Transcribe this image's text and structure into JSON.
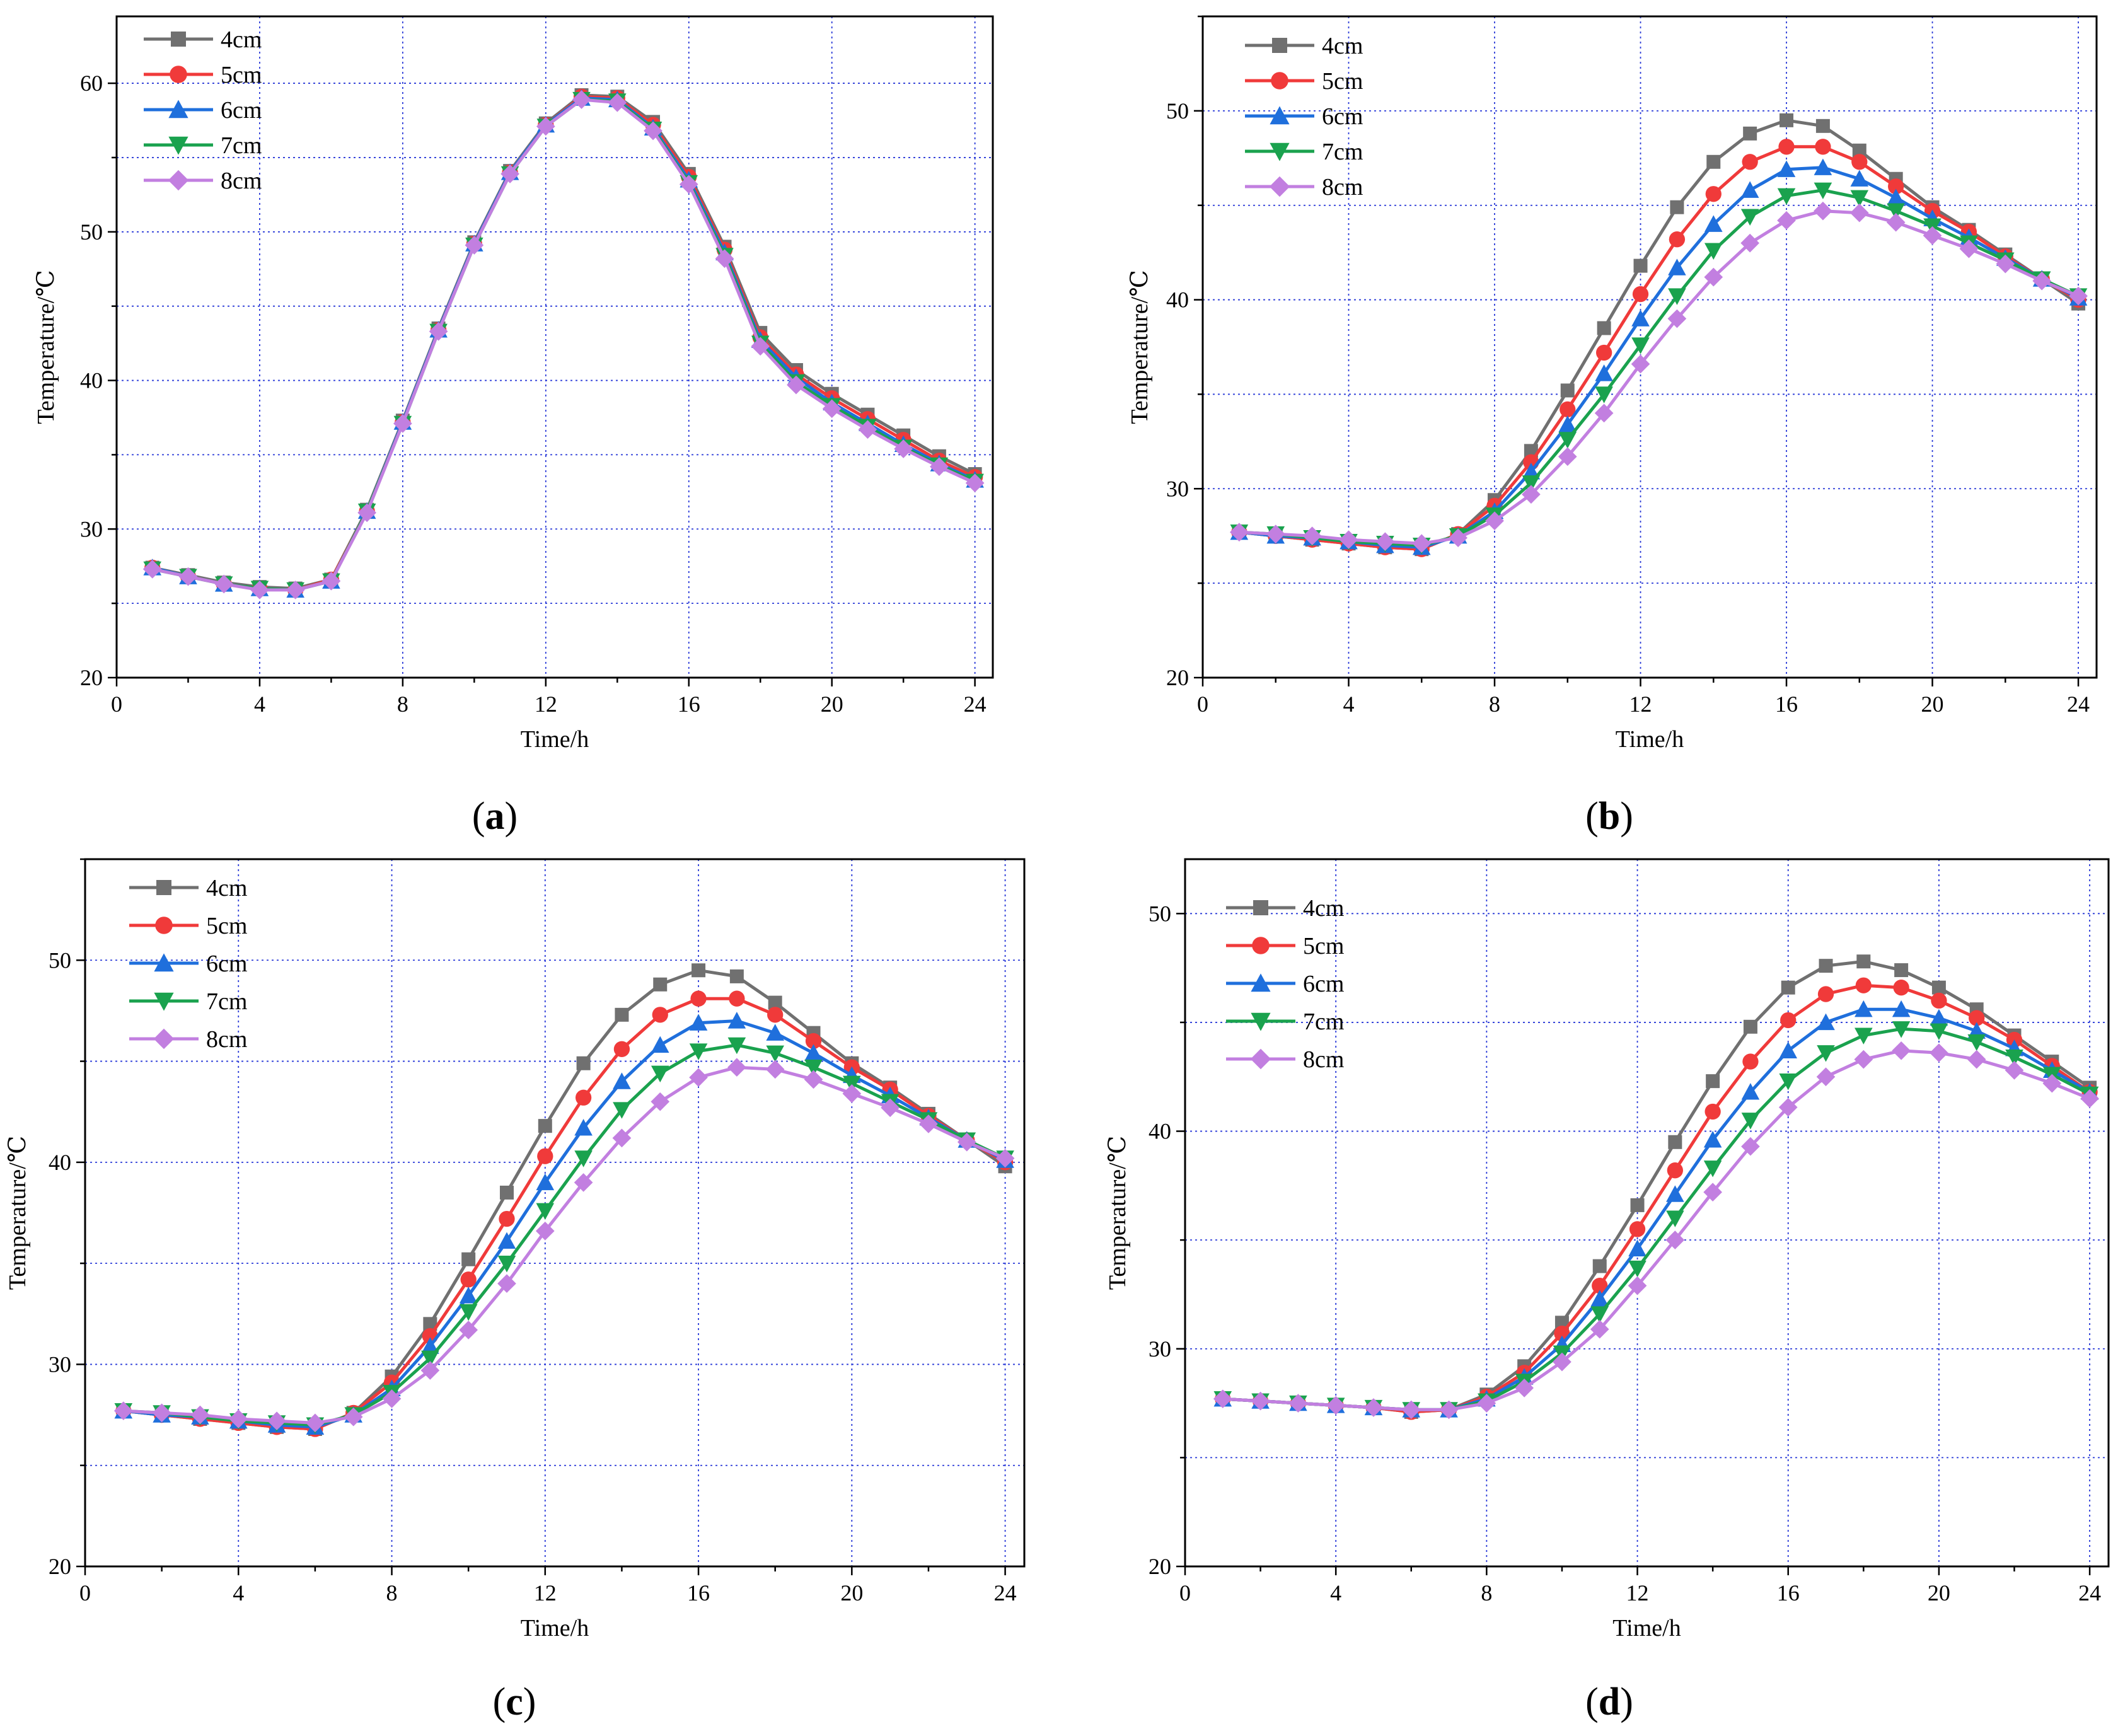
{
  "figure": {
    "type": "multi-panel line chart",
    "panels": 4
  },
  "colors": {
    "grid": "#2b3bd8",
    "axis": "#000000",
    "series": [
      "#707070",
      "#f03a3a",
      "#1f6fdc",
      "#1aa24e",
      "#c27fe0"
    ]
  },
  "legend_labels": [
    "4cm",
    "5cm",
    "6cm",
    "7cm",
    "8cm"
  ],
  "markers": [
    "square",
    "circle",
    "triangle-up",
    "triangle-down",
    "diamond"
  ],
  "chart_data": [
    {
      "type": "line",
      "panel_label": "a",
      "caption_open": "(",
      "caption_close": ")",
      "xlabel": "Time/h",
      "ylabel": "Temperature/℃",
      "xlim": [
        0,
        24.5
      ],
      "ylim": [
        20,
        64.5
      ],
      "xticks": [
        0,
        4,
        8,
        12,
        16,
        20,
        24
      ],
      "xtick_labels": [
        "0",
        "4",
        "8",
        "12",
        "16",
        "20",
        "24"
      ],
      "yticks": [
        20,
        30,
        40,
        50,
        60
      ],
      "ytick_labels": [
        "20",
        "30",
        "40",
        "50",
        "60"
      ],
      "grid_y": [
        25,
        35,
        45,
        55
      ],
      "x": [
        1,
        2,
        3,
        4,
        5,
        6,
        7,
        8,
        9,
        10,
        11,
        12,
        13,
        14,
        15,
        16,
        17,
        18,
        19,
        20,
        21,
        22,
        23,
        24
      ],
      "legend_position": "top-left",
      "series": [
        {
          "name": "4cm",
          "values": [
            27.4,
            26.9,
            26.4,
            26.1,
            26.0,
            26.6,
            31.3,
            37.3,
            43.5,
            49.3,
            54.1,
            57.3,
            59.2,
            59.1,
            57.4,
            53.9,
            49.0,
            43.2,
            40.7,
            39.1,
            37.7,
            36.3,
            34.9,
            33.7
          ]
        },
        {
          "name": "5cm",
          "values": [
            27.4,
            26.8,
            26.3,
            26.0,
            25.9,
            26.6,
            31.2,
            37.2,
            43.4,
            49.2,
            54.0,
            57.2,
            59.1,
            59.0,
            57.2,
            53.7,
            48.8,
            42.9,
            40.4,
            38.8,
            37.4,
            36.0,
            34.6,
            33.5
          ]
        },
        {
          "name": "6cm",
          "values": [
            27.4,
            26.8,
            26.3,
            26.0,
            25.9,
            26.5,
            31.2,
            37.2,
            43.4,
            49.2,
            54.0,
            57.2,
            59.0,
            58.9,
            57.0,
            53.5,
            48.6,
            42.7,
            40.2,
            38.5,
            37.1,
            35.7,
            34.4,
            33.3
          ]
        },
        {
          "name": "7cm",
          "values": [
            27.3,
            26.8,
            26.3,
            26.0,
            25.9,
            26.5,
            31.2,
            37.1,
            43.3,
            49.1,
            53.9,
            57.1,
            58.9,
            58.8,
            56.9,
            53.3,
            48.4,
            42.5,
            39.9,
            38.3,
            36.9,
            35.5,
            34.3,
            33.2
          ]
        },
        {
          "name": "8cm",
          "values": [
            27.3,
            26.8,
            26.3,
            25.9,
            25.9,
            26.5,
            31.1,
            37.1,
            43.3,
            49.1,
            53.9,
            57.1,
            58.9,
            58.7,
            56.8,
            53.2,
            48.2,
            42.3,
            39.7,
            38.1,
            36.7,
            35.4,
            34.2,
            33.1
          ]
        }
      ]
    },
    {
      "type": "line",
      "panel_label": "b",
      "caption_open": "(",
      "caption_close": ")",
      "xlabel": "Time/h",
      "ylabel": "Temperature/℃",
      "xlim": [
        0,
        24.5
      ],
      "ylim": [
        20,
        55
      ],
      "xticks": [
        0,
        4,
        8,
        12,
        16,
        20,
        24
      ],
      "xtick_labels": [
        "0",
        "4",
        "8",
        "12",
        "16",
        "20",
        "24"
      ],
      "yticks": [
        20,
        30,
        40,
        50
      ],
      "ytick_labels": [
        "20",
        "30",
        "40",
        "50"
      ],
      "grid_y": [
        25,
        35,
        45,
        55
      ],
      "x": [
        1,
        2,
        3,
        4,
        5,
        6,
        7,
        8,
        9,
        10,
        11,
        12,
        13,
        14,
        15,
        16,
        17,
        18,
        19,
        20,
        21,
        22,
        23,
        24
      ],
      "legend_position": "top-left",
      "series": [
        {
          "name": "4cm",
          "values": [
            27.7,
            27.5,
            27.3,
            27.1,
            26.9,
            26.8,
            27.6,
            29.4,
            32.0,
            35.2,
            38.5,
            41.8,
            44.9,
            47.3,
            48.8,
            49.5,
            49.2,
            47.9,
            46.4,
            44.9,
            43.7,
            42.4,
            41.1,
            39.8
          ]
        },
        {
          "name": "5cm",
          "values": [
            27.7,
            27.5,
            27.3,
            27.1,
            26.9,
            26.8,
            27.6,
            29.1,
            31.4,
            34.2,
            37.2,
            40.3,
            43.2,
            45.6,
            47.3,
            48.1,
            48.1,
            47.3,
            46.0,
            44.7,
            43.6,
            42.3,
            41.1,
            40.0
          ]
        },
        {
          "name": "6cm",
          "values": [
            27.7,
            27.5,
            27.4,
            27.2,
            27.0,
            26.9,
            27.5,
            28.8,
            30.9,
            33.4,
            36.1,
            39.0,
            41.7,
            44.0,
            45.8,
            46.9,
            47.0,
            46.4,
            45.4,
            44.3,
            43.3,
            42.2,
            41.1,
            40.1
          ]
        },
        {
          "name": "7cm",
          "values": [
            27.7,
            27.6,
            27.4,
            27.2,
            27.1,
            27.0,
            27.5,
            28.6,
            30.3,
            32.6,
            35.0,
            37.6,
            40.2,
            42.6,
            44.4,
            45.5,
            45.8,
            45.4,
            44.7,
            43.9,
            43.0,
            42.1,
            41.1,
            40.2
          ]
        },
        {
          "name": "8cm",
          "values": [
            27.7,
            27.6,
            27.5,
            27.3,
            27.2,
            27.1,
            27.4,
            28.3,
            29.7,
            31.7,
            34.0,
            36.6,
            39.0,
            41.2,
            43.0,
            44.2,
            44.7,
            44.6,
            44.1,
            43.4,
            42.7,
            41.9,
            41.0,
            40.2
          ]
        }
      ]
    },
    {
      "type": "line",
      "panel_label": "c",
      "caption_open": "(",
      "caption_close": ")",
      "xlabel": "Time/h",
      "ylabel": "Temperature/℃",
      "xlim": [
        0,
        24.5
      ],
      "ylim": [
        20,
        55
      ],
      "xticks": [
        0,
        4,
        8,
        12,
        16,
        20,
        24
      ],
      "xtick_labels": [
        "0",
        "4",
        "8",
        "12",
        "16",
        "20",
        "24"
      ],
      "yticks": [
        20,
        30,
        40,
        50
      ],
      "ytick_labels": [
        "20",
        "30",
        "40",
        "50"
      ],
      "grid_y": [
        25,
        35,
        45,
        55
      ],
      "x": [
        1,
        2,
        3,
        4,
        5,
        6,
        7,
        8,
        9,
        10,
        11,
        12,
        13,
        14,
        15,
        16,
        17,
        18,
        19,
        20,
        21,
        22,
        23,
        24
      ],
      "legend_position": "top-left",
      "series": [
        {
          "name": "4cm",
          "values": [
            27.7,
            27.5,
            27.3,
            27.1,
            26.9,
            26.8,
            27.6,
            29.4,
            32.0,
            35.2,
            38.5,
            41.8,
            44.9,
            47.3,
            48.8,
            49.5,
            49.2,
            47.9,
            46.4,
            44.9,
            43.7,
            42.4,
            41.1,
            39.8
          ]
        },
        {
          "name": "5cm",
          "values": [
            27.7,
            27.5,
            27.3,
            27.1,
            26.9,
            26.8,
            27.6,
            29.1,
            31.4,
            34.2,
            37.2,
            40.3,
            43.2,
            45.6,
            47.3,
            48.1,
            48.1,
            47.3,
            46.0,
            44.7,
            43.6,
            42.3,
            41.1,
            40.0
          ]
        },
        {
          "name": "6cm",
          "values": [
            27.7,
            27.5,
            27.4,
            27.2,
            27.0,
            26.9,
            27.5,
            28.8,
            30.9,
            33.4,
            36.1,
            39.0,
            41.7,
            44.0,
            45.8,
            46.9,
            47.0,
            46.4,
            45.4,
            44.3,
            43.3,
            42.2,
            41.1,
            40.1
          ]
        },
        {
          "name": "7cm",
          "values": [
            27.7,
            27.6,
            27.4,
            27.2,
            27.1,
            27.0,
            27.5,
            28.6,
            30.3,
            32.6,
            35.0,
            37.6,
            40.2,
            42.6,
            44.4,
            45.5,
            45.8,
            45.4,
            44.7,
            43.9,
            43.0,
            42.1,
            41.1,
            40.2
          ]
        },
        {
          "name": "8cm",
          "values": [
            27.7,
            27.6,
            27.5,
            27.3,
            27.2,
            27.1,
            27.4,
            28.3,
            29.7,
            31.7,
            34.0,
            36.6,
            39.0,
            41.2,
            43.0,
            44.2,
            44.7,
            44.6,
            44.1,
            43.4,
            42.7,
            41.9,
            41.0,
            40.2
          ]
        }
      ]
    },
    {
      "type": "line",
      "panel_label": "d",
      "caption_open": "(",
      "caption_close": ")",
      "xlabel": "Time/h",
      "ylabel": "Temperature/℃",
      "xlim": [
        0,
        24.5
      ],
      "ylim": [
        20,
        52.5
      ],
      "xticks": [
        0,
        4,
        8,
        12,
        16,
        20,
        24
      ],
      "xtick_labels": [
        "0",
        "4",
        "8",
        "12",
        "16",
        "20",
        "24"
      ],
      "yticks": [
        20,
        30,
        40,
        50
      ],
      "ytick_labels": [
        "20",
        "30",
        "40",
        "50"
      ],
      "grid_y": [
        25,
        35,
        45
      ],
      "x": [
        1,
        2,
        3,
        4,
        5,
        6,
        7,
        8,
        9,
        10,
        11,
        12,
        13,
        14,
        15,
        16,
        17,
        18,
        19,
        20,
        21,
        22,
        23,
        24
      ],
      "legend_position": "top-left",
      "series": [
        {
          "name": "4cm",
          "values": [
            27.7,
            27.6,
            27.5,
            27.4,
            27.3,
            27.1,
            27.2,
            27.9,
            29.2,
            31.2,
            33.8,
            36.6,
            39.5,
            42.3,
            44.8,
            46.6,
            47.6,
            47.8,
            47.4,
            46.6,
            45.6,
            44.4,
            43.2,
            42.0
          ]
        },
        {
          "name": "5cm",
          "values": [
            27.7,
            27.6,
            27.5,
            27.4,
            27.3,
            27.1,
            27.2,
            27.8,
            28.9,
            30.7,
            32.9,
            35.5,
            38.2,
            40.9,
            43.2,
            45.1,
            46.3,
            46.7,
            46.6,
            46.0,
            45.2,
            44.2,
            43.0,
            41.8
          ]
        },
        {
          "name": "6cm",
          "values": [
            27.7,
            27.6,
            27.5,
            27.4,
            27.3,
            27.2,
            27.2,
            27.7,
            28.7,
            30.2,
            32.3,
            34.6,
            37.1,
            39.6,
            41.8,
            43.7,
            45.0,
            45.6,
            45.6,
            45.2,
            44.6,
            43.8,
            42.8,
            41.8
          ]
        },
        {
          "name": "7cm",
          "values": [
            27.7,
            27.6,
            27.5,
            27.4,
            27.3,
            27.2,
            27.2,
            27.6,
            28.5,
            29.8,
            31.6,
            33.7,
            36.0,
            38.3,
            40.5,
            42.3,
            43.6,
            44.4,
            44.7,
            44.6,
            44.1,
            43.4,
            42.6,
            41.7
          ]
        },
        {
          "name": "8cm",
          "values": [
            27.7,
            27.6,
            27.5,
            27.4,
            27.3,
            27.2,
            27.2,
            27.5,
            28.2,
            29.4,
            30.9,
            32.9,
            35.0,
            37.2,
            39.3,
            41.1,
            42.5,
            43.3,
            43.7,
            43.6,
            43.3,
            42.8,
            42.2,
            41.5
          ]
        }
      ]
    }
  ]
}
